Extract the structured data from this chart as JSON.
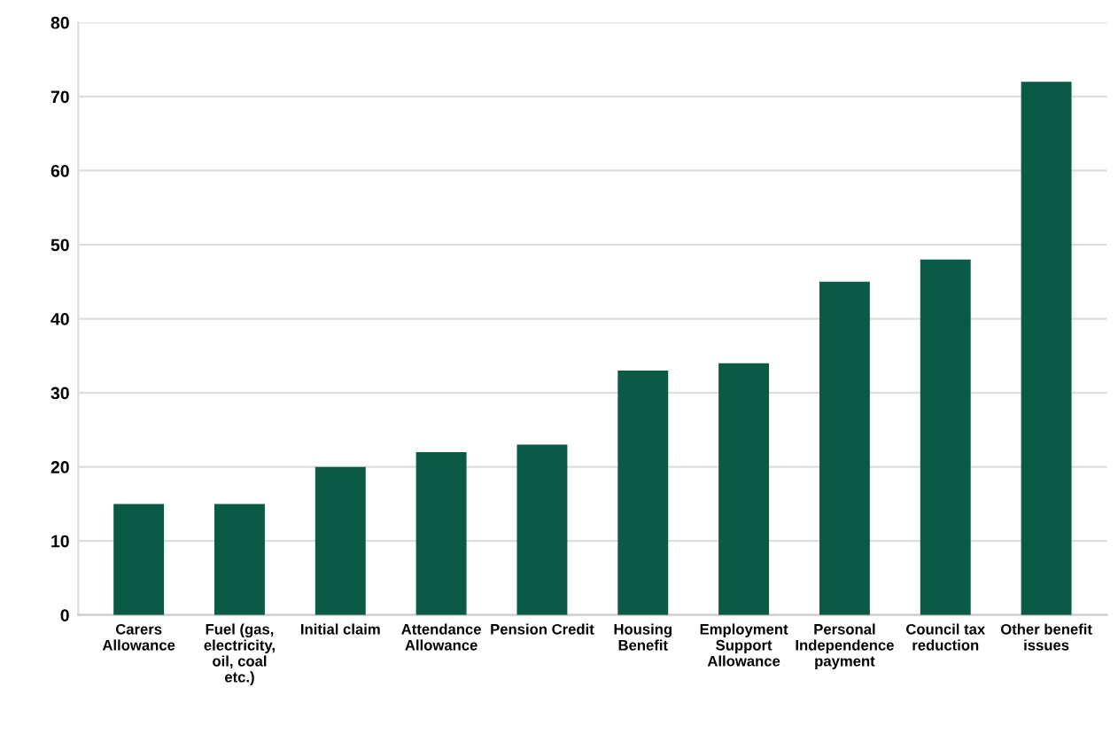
{
  "chart_data": {
    "type": "bar",
    "categories": [
      "Carers Allowance",
      "Fuel (gas, electricity, oil, coal etc.)",
      "Initial claim",
      "Attendance Allowance",
      "Pension Credit",
      "Housing Benefit",
      "Employment Support Allowance",
      "Personal Independence payment",
      "Council tax reduction",
      "Other benefit issues"
    ],
    "values": [
      15,
      15,
      20,
      22,
      23,
      33,
      34,
      45,
      48,
      72
    ],
    "color": "#0b5a45",
    "ylim": [
      0,
      80
    ],
    "yticks": [
      0,
      10,
      20,
      30,
      40,
      50,
      60,
      70,
      80
    ],
    "grid": "y"
  }
}
